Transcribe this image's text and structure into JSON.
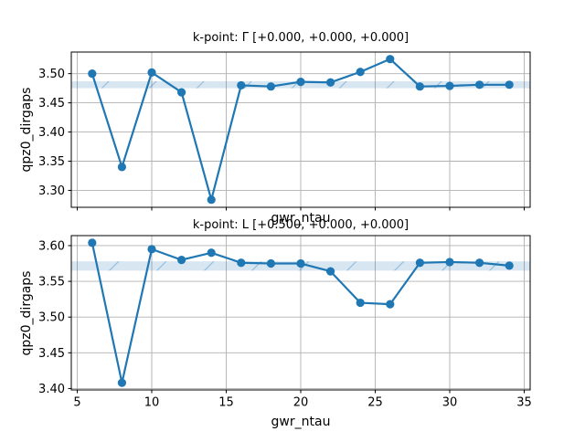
{
  "figure": {
    "kind": "matplotlib-convergence-figure",
    "colors": {
      "line": "#1f77b4",
      "band_fill": "#1f77b4",
      "band_hatch": "#1f77b4",
      "grid": "#b0b0b0",
      "spine": "#000000",
      "text": "#000000",
      "background": "#ffffff"
    }
  },
  "chart_data": [
    {
      "type": "line",
      "subplot": "top",
      "title": "k-point: Γ [+0.000, +0.000, +0.000]",
      "xlabel": "gwr_ntau",
      "ylabel": "qpz0_dirgaps",
      "series": [
        {
          "name": "qpz0_dirgaps",
          "x": [
            6,
            8,
            10,
            12,
            14,
            16,
            18,
            20,
            22,
            24,
            26,
            28,
            30,
            32,
            34
          ],
          "y": [
            3.5,
            3.34,
            3.502,
            3.468,
            3.284,
            3.48,
            3.478,
            3.486,
            3.485,
            3.503,
            3.525,
            3.478,
            3.479,
            3.481,
            3.481
          ]
        }
      ],
      "xlim": [
        4.6,
        35.4
      ],
      "ylim": [
        3.271,
        3.537
      ],
      "xticks": [
        5,
        10,
        15,
        20,
        25,
        30,
        35
      ],
      "xtick_labels": [
        "5",
        "10",
        "15",
        "20",
        "25",
        "30",
        "35"
      ],
      "xtick_labels_visible": false,
      "yticks": [
        3.3,
        3.35,
        3.4,
        3.45,
        3.5
      ],
      "ytick_labels": [
        "3.30",
        "3.35",
        "3.40",
        "3.45",
        "3.50"
      ],
      "grid": true,
      "band": {
        "y_min": 3.475,
        "y_max": 3.487,
        "hatch": "/"
      },
      "marker": "o",
      "line_color": "#1f77b4"
    },
    {
      "type": "line",
      "subplot": "bottom",
      "title": "k-point: L [+0.500, +0.000, +0.000]",
      "xlabel": "gwr_ntau",
      "ylabel": "qpz0_dirgaps",
      "series": [
        {
          "name": "qpz0_dirgaps",
          "x": [
            6,
            8,
            10,
            12,
            14,
            16,
            18,
            20,
            22,
            24,
            26,
            28,
            30,
            32,
            34
          ],
          "y": [
            3.604,
            3.408,
            3.595,
            3.58,
            3.59,
            3.576,
            3.575,
            3.575,
            3.564,
            3.52,
            3.518,
            3.576,
            3.577,
            3.576,
            3.572
          ]
        }
      ],
      "xlim": [
        4.6,
        35.4
      ],
      "ylim": [
        3.398,
        3.614
      ],
      "xticks": [
        5,
        10,
        15,
        20,
        25,
        30,
        35
      ],
      "xtick_labels": [
        "5",
        "10",
        "15",
        "20",
        "25",
        "30",
        "35"
      ],
      "xtick_labels_visible": true,
      "yticks": [
        3.4,
        3.45,
        3.5,
        3.55,
        3.6
      ],
      "ytick_labels": [
        "3.40",
        "3.45",
        "3.50",
        "3.55",
        "3.60"
      ],
      "grid": true,
      "band": {
        "y_min": 3.565,
        "y_max": 3.578,
        "hatch": "/"
      },
      "marker": "o",
      "line_color": "#1f77b4"
    }
  ]
}
